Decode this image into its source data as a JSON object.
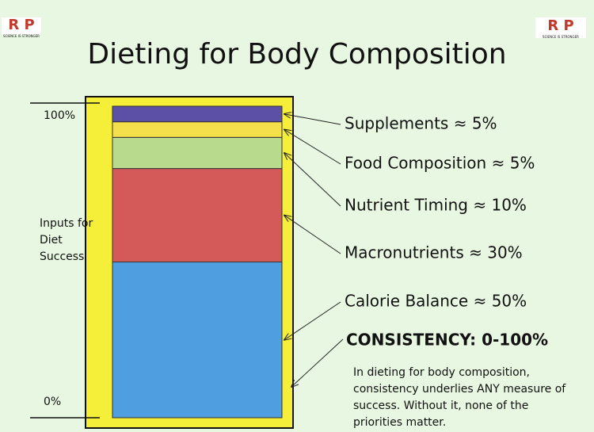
{
  "chart_data": {
    "type": "stacked-bar",
    "title": "Dieting for Body Composition",
    "logo_text": "SCIENCE IS STRONGER",
    "ylabel": "Inputs for Diet Success",
    "ylim": [
      0,
      100
    ],
    "yticks": [
      {
        "value": 0,
        "label": "0%"
      },
      {
        "value": 100,
        "label": "100%"
      }
    ],
    "series": [
      {
        "name": "Calorie Balance ≈ 50%",
        "color": "#4f9ee0",
        "values": [
          50
        ]
      },
      {
        "name": "Macronutrients ≈ 30%",
        "color": "#d45a5a",
        "values": [
          30
        ]
      },
      {
        "name": "Nutrient Timing ≈ 10%",
        "color": "#b7da8c",
        "values": [
          10
        ]
      },
      {
        "name": "Food Composition ≈ 5%",
        "color": "#f4e04a",
        "values": [
          5
        ]
      },
      {
        "name": "Supplements ≈ 5%",
        "color": "#5b4fa6",
        "values": [
          5
        ]
      }
    ],
    "annotation": "CONSISTENCY: 0-100%",
    "note": "In dieting for body composition, consistency underlies ANY measure of success. Without it, none of the priorities matter."
  }
}
